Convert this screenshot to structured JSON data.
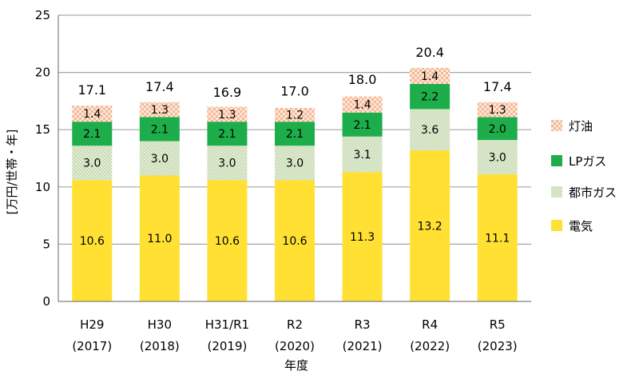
{
  "chart_data": {
    "type": "bar",
    "stacked": true,
    "categories": [
      [
        "H29",
        "(2017)"
      ],
      [
        "H30",
        "(2018)"
      ],
      [
        "H31/R1",
        "(2019)"
      ],
      [
        "R2",
        "(2020)"
      ],
      [
        "R3",
        "(2021)"
      ],
      [
        "R4",
        "(2022)"
      ],
      [
        "R5",
        "(2023)"
      ]
    ],
    "series": [
      {
        "name": "電気",
        "values": [
          10.6,
          11.0,
          10.6,
          10.6,
          11.3,
          13.2,
          11.1
        ],
        "labels": [
          "10.6",
          "11.0",
          "10.6",
          "10.6",
          "11.3",
          "13.2",
          "11.1"
        ],
        "color": "#FFE033",
        "pattern": "solid"
      },
      {
        "name": "都市ガス",
        "values": [
          3.0,
          3.0,
          3.0,
          3.0,
          3.1,
          3.6,
          3.0
        ],
        "labels": [
          "3.0",
          "3.0",
          "3.0",
          "3.0",
          "3.1",
          "3.6",
          "3.0"
        ],
        "color": "#C9DDB6",
        "pattern": "dots"
      },
      {
        "name": "LPガス",
        "values": [
          2.1,
          2.1,
          2.1,
          2.1,
          2.1,
          2.2,
          2.0
        ],
        "labels": [
          "2.1",
          "2.1",
          "2.1",
          "2.1",
          "2.1",
          "2.2",
          "2.0"
        ],
        "color": "#1DAE4B",
        "pattern": "solid"
      },
      {
        "name": "灯油",
        "values": [
          1.4,
          1.3,
          1.3,
          1.2,
          1.4,
          1.4,
          1.3
        ],
        "labels": [
          "1.4",
          "1.3",
          "1.3",
          "1.2",
          "1.4",
          "1.4",
          "1.3"
        ],
        "color": "#F8C6A8",
        "pattern": "checker"
      }
    ],
    "totals": [
      17.1,
      17.4,
      16.9,
      17.0,
      18.0,
      20.4,
      17.4
    ],
    "total_labels": [
      "17.1",
      "17.4",
      "16.9",
      "17.0",
      "18.0",
      "20.4",
      "17.4"
    ],
    "xlabel": "年度",
    "ylabel": "[万円/世帯・年]",
    "ylim": [
      0,
      25
    ],
    "yticks": [
      "0",
      "5",
      "10",
      "15",
      "20",
      "25"
    ],
    "ytick_values": [
      0,
      5,
      10,
      15,
      20,
      25
    ],
    "grid": true,
    "legend_position": "right",
    "legend_order": [
      "灯油",
      "LPガス",
      "都市ガス",
      "電気"
    ]
  }
}
